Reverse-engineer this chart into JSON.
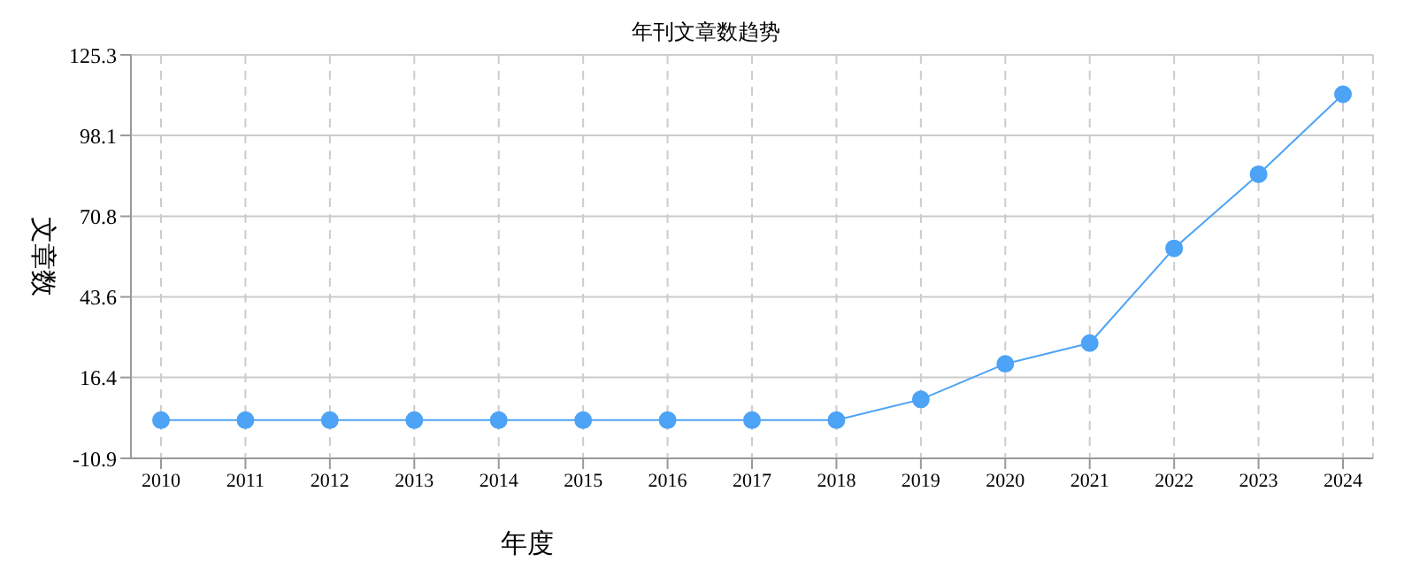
{
  "chart_data": {
    "type": "line",
    "title": "年刊文章数趋势",
    "xlabel": "年度",
    "ylabel": "文章数",
    "categories": [
      "2010",
      "2011",
      "2012",
      "2013",
      "2014",
      "2015",
      "2016",
      "2017",
      "2018",
      "2019",
      "2020",
      "2021",
      "2022",
      "2023",
      "2024"
    ],
    "series": [
      {
        "color": "#4da3f5",
        "values": [
          2,
          2,
          2,
          2,
          2,
          2,
          2,
          2,
          2,
          9,
          21,
          28,
          60,
          85,
          112
        ]
      }
    ],
    "ylim": [
      -10.9,
      125.3
    ],
    "yticks": [
      -10.9,
      16.4,
      43.6,
      70.8,
      98.1,
      125.3
    ],
    "grid": true,
    "marker": "circle",
    "line_style": "solid",
    "legend": false
  }
}
